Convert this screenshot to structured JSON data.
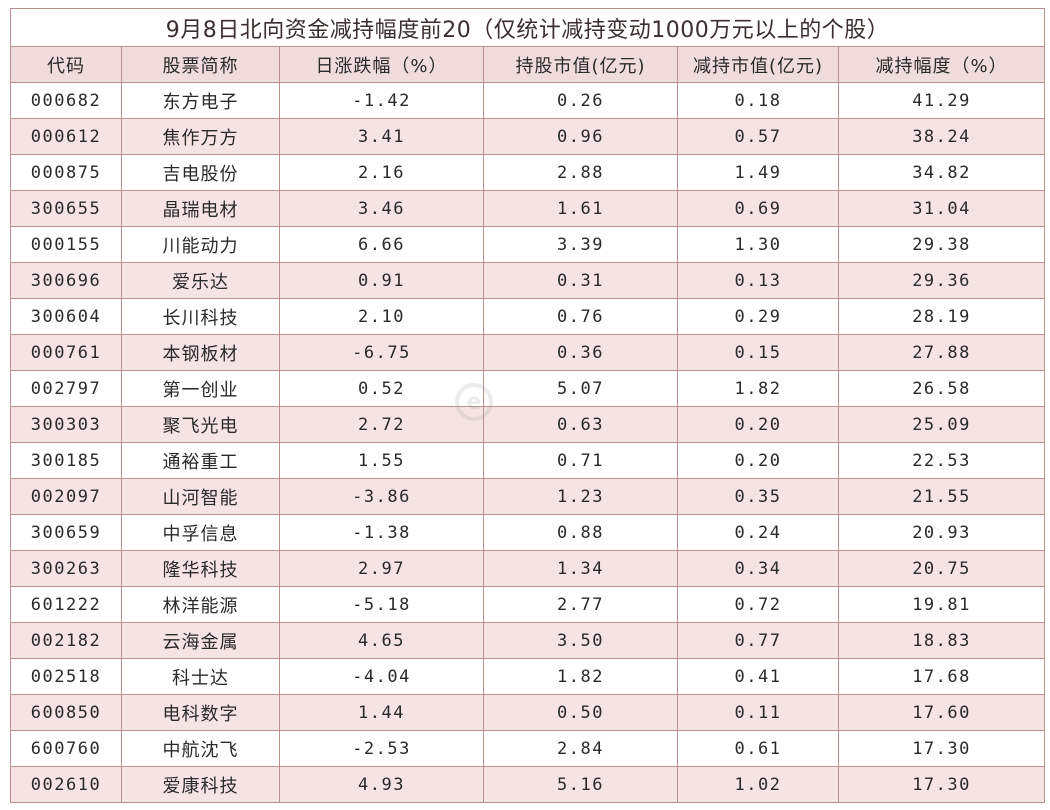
{
  "title": "9月8日北向资金减持幅度前20（仅统计减持变动1000万元以上的个股）",
  "headers": [
    "代码",
    "股票简称",
    "日涨跌幅（%）",
    "持股市值(亿元)",
    "减持市值(亿元)",
    "减持幅度（%）"
  ],
  "rows": [
    [
      "000682",
      "东方电子",
      "-1.42",
      "0.26",
      "0.18",
      "41.29"
    ],
    [
      "000612",
      "焦作万方",
      "3.41",
      "0.96",
      "0.57",
      "38.24"
    ],
    [
      "000875",
      "吉电股份",
      "2.16",
      "2.88",
      "1.49",
      "34.82"
    ],
    [
      "300655",
      "晶瑞电材",
      "3.46",
      "1.61",
      "0.69",
      "31.04"
    ],
    [
      "000155",
      "川能动力",
      "6.66",
      "3.39",
      "1.30",
      "29.38"
    ],
    [
      "300696",
      "爱乐达",
      "0.91",
      "0.31",
      "0.13",
      "29.36"
    ],
    [
      "300604",
      "长川科技",
      "2.10",
      "0.76",
      "0.29",
      "28.19"
    ],
    [
      "000761",
      "本钢板材",
      "-6.75",
      "0.36",
      "0.15",
      "27.88"
    ],
    [
      "002797",
      "第一创业",
      "0.52",
      "5.07",
      "1.82",
      "26.58"
    ],
    [
      "300303",
      "聚飞光电",
      "2.72",
      "0.63",
      "0.20",
      "25.09"
    ],
    [
      "300185",
      "通裕重工",
      "1.55",
      "0.71",
      "0.20",
      "22.53"
    ],
    [
      "002097",
      "山河智能",
      "-3.86",
      "1.23",
      "0.35",
      "21.55"
    ],
    [
      "300659",
      "中孚信息",
      "-1.38",
      "0.88",
      "0.24",
      "20.93"
    ],
    [
      "300263",
      "隆华科技",
      "2.97",
      "1.34",
      "0.34",
      "20.75"
    ],
    [
      "601222",
      "林洋能源",
      "-5.18",
      "2.77",
      "0.72",
      "19.81"
    ],
    [
      "002182",
      "云海金属",
      "4.65",
      "3.50",
      "0.77",
      "18.83"
    ],
    [
      "002518",
      "科士达",
      "-4.04",
      "1.82",
      "0.41",
      "17.68"
    ],
    [
      "600850",
      "电科数字",
      "1.44",
      "0.50",
      "0.11",
      "17.60"
    ],
    [
      "600760",
      "中航沈飞",
      "-2.53",
      "2.84",
      "0.61",
      "17.30"
    ],
    [
      "002610",
      "爱康科技",
      "4.93",
      "5.16",
      "1.02",
      "17.30"
    ]
  ],
  "watermark_icon": "e-circle-logo-icon",
  "colors": {
    "border": "#b98f8f",
    "header_bg": "#f0dcdc",
    "alt_row_bg": "#f6e3e3"
  }
}
